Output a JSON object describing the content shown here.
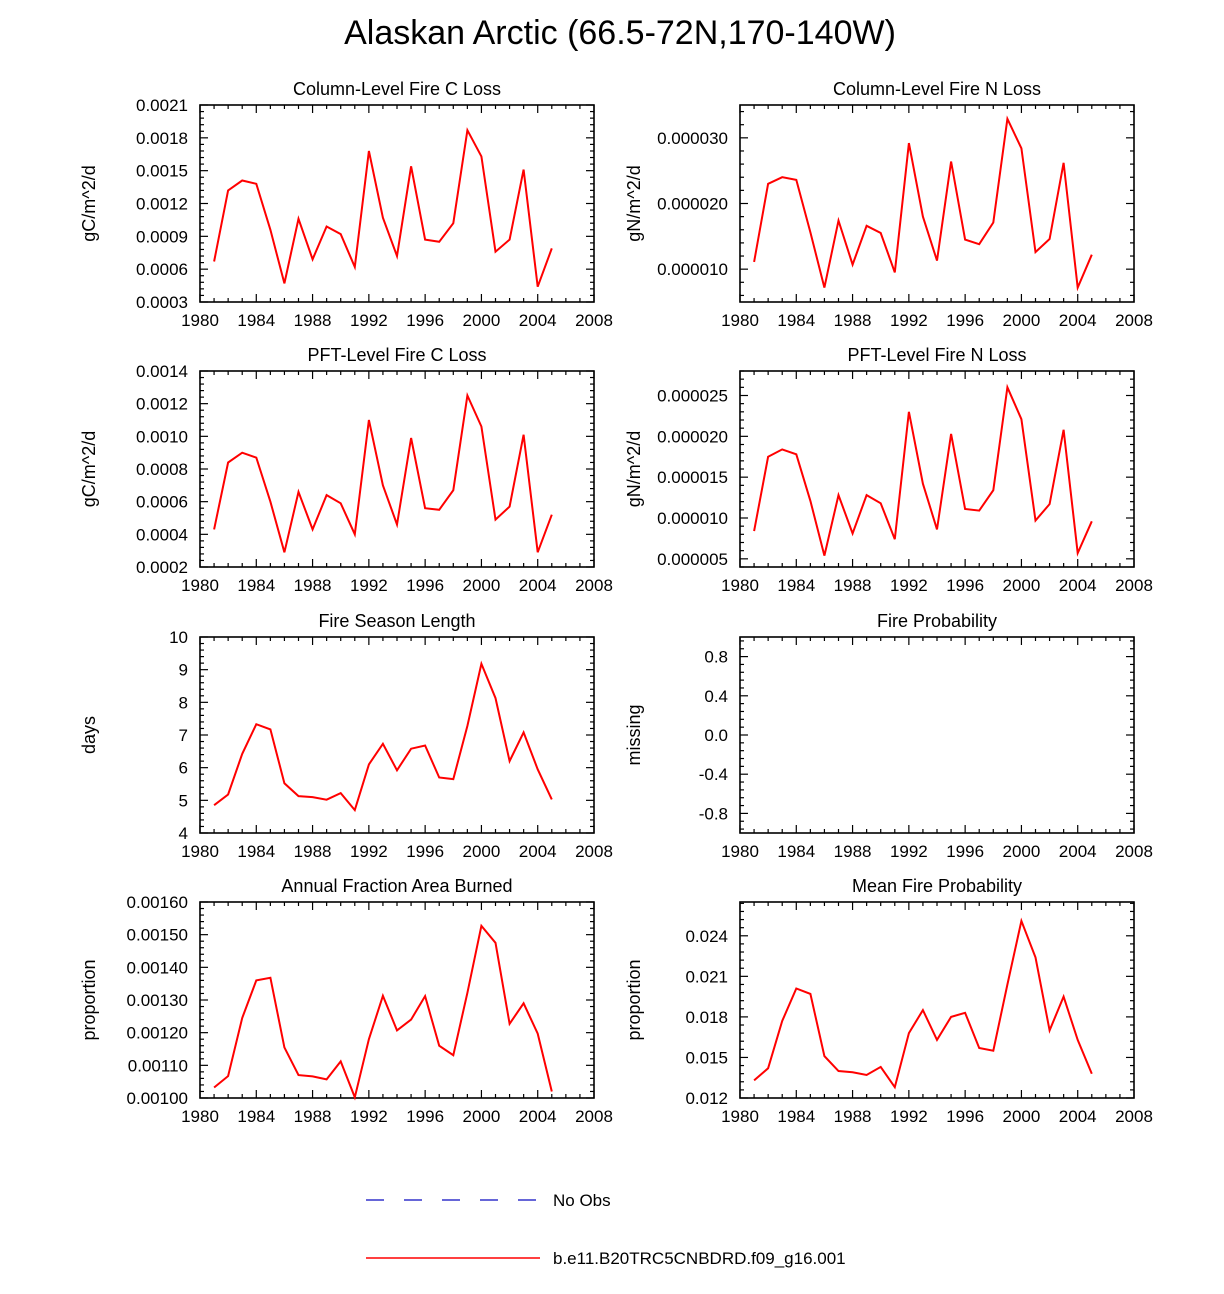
{
  "title": "Alaskan Arctic (66.5-72N,170-140W)",
  "colors": {
    "model": "#ff0000",
    "obs": "#3333cc",
    "axis": "#000000"
  },
  "legend": {
    "obs_label": "No Obs",
    "model_label": "b.e11.B20TRC5CNBDRD.f09_g16.001"
  },
  "chart_data": [
    {
      "id": "col-c",
      "type": "line",
      "title": "Column-Level Fire C Loss",
      "xlabel": "",
      "ylabel": "gC/m^2/d",
      "xlim": [
        1980,
        2008
      ],
      "ylim": [
        0.0003,
        0.0021
      ],
      "xticks": [
        1980,
        1984,
        1988,
        1992,
        1996,
        2000,
        2004,
        2008
      ],
      "yticks": [
        "0.0003",
        "0.0006",
        "0.0009",
        "0.0012",
        "0.0015",
        "0.0018",
        "0.0021"
      ],
      "x": [
        1981,
        1982,
        1983,
        1984,
        1985,
        1986,
        1987,
        1988,
        1989,
        1990,
        1991,
        1992,
        1993,
        1994,
        1995,
        1996,
        1997,
        1998,
        1999,
        2000,
        2001,
        2002,
        2003,
        2004,
        2005
      ],
      "series": [
        {
          "name": "b.e11.B20TRC5CNBDRD.f09_g16.001",
          "values": [
            0.00067,
            0.00132,
            0.00141,
            0.00138,
            0.00096,
            0.00047,
            0.00106,
            0.00069,
            0.00099,
            0.00092,
            0.00062,
            0.00168,
            0.00107,
            0.00072,
            0.00154,
            0.00087,
            0.00085,
            0.00102,
            0.00187,
            0.00163,
            0.00076,
            0.00087,
            0.00151,
            0.00044,
            0.00079
          ]
        }
      ]
    },
    {
      "id": "col-n",
      "type": "line",
      "title": "Column-Level Fire N Loss",
      "xlabel": "",
      "ylabel": "gN/m^2/d",
      "xlim": [
        1980,
        2008
      ],
      "ylim": [
        5e-06,
        3.5e-05
      ],
      "xticks": [
        1980,
        1984,
        1988,
        1992,
        1996,
        2000,
        2004,
        2008
      ],
      "yticks": [
        "0.000010",
        "0.000020",
        "0.000030"
      ],
      "x": [
        1981,
        1982,
        1983,
        1984,
        1985,
        1986,
        1987,
        1988,
        1989,
        1990,
        1991,
        1992,
        1993,
        1994,
        1995,
        1996,
        1997,
        1998,
        1999,
        2000,
        2001,
        2002,
        2003,
        2004,
        2005
      ],
      "series": [
        {
          "name": "b.e11.B20TRC5CNBDRD.f09_g16.001",
          "values": [
            1.11e-05,
            2.3e-05,
            2.4e-05,
            2.36e-05,
            1.56e-05,
            7.2e-06,
            1.74e-05,
            1.07e-05,
            1.66e-05,
            1.55e-05,
            9.5e-06,
            2.92e-05,
            1.8e-05,
            1.13e-05,
            2.64e-05,
            1.45e-05,
            1.38e-05,
            1.71e-05,
            3.29e-05,
            2.84e-05,
            1.26e-05,
            1.46e-05,
            2.62e-05,
            7.2e-06,
            1.22e-05
          ]
        }
      ]
    },
    {
      "id": "pft-c",
      "type": "line",
      "title": "PFT-Level Fire C Loss",
      "xlabel": "",
      "ylabel": "gC/m^2/d",
      "xlim": [
        1980,
        2008
      ],
      "ylim": [
        0.0002,
        0.0014
      ],
      "xticks": [
        1980,
        1984,
        1988,
        1992,
        1996,
        2000,
        2004,
        2008
      ],
      "yticks": [
        "0.0002",
        "0.0004",
        "0.0006",
        "0.0008",
        "0.0010",
        "0.0012",
        "0.0014"
      ],
      "x": [
        1981,
        1982,
        1983,
        1984,
        1985,
        1986,
        1987,
        1988,
        1989,
        1990,
        1991,
        1992,
        1993,
        1994,
        1995,
        1996,
        1997,
        1998,
        1999,
        2000,
        2001,
        2002,
        2003,
        2004,
        2005
      ],
      "series": [
        {
          "name": "b.e11.B20TRC5CNBDRD.f09_g16.001",
          "values": [
            0.00043,
            0.00084,
            0.0009,
            0.00087,
            0.0006,
            0.00029,
            0.00066,
            0.00043,
            0.00064,
            0.00059,
            0.0004,
            0.0011,
            0.0007,
            0.00046,
            0.00099,
            0.00056,
            0.00055,
            0.00067,
            0.00125,
            0.00106,
            0.00049,
            0.00057,
            0.00101,
            0.00029,
            0.00052
          ]
        }
      ]
    },
    {
      "id": "pft-n",
      "type": "line",
      "title": "PFT-Level Fire N Loss",
      "xlabel": "",
      "ylabel": "gN/m^2/d",
      "xlim": [
        1980,
        2008
      ],
      "ylim": [
        4e-06,
        2.8e-05
      ],
      "xticks": [
        1980,
        1984,
        1988,
        1992,
        1996,
        2000,
        2004,
        2008
      ],
      "yticks": [
        "0.000005",
        "0.000010",
        "0.000015",
        "0.000020",
        "0.000025"
      ],
      "x": [
        1981,
        1982,
        1983,
        1984,
        1985,
        1986,
        1987,
        1988,
        1989,
        1990,
        1991,
        1992,
        1993,
        1994,
        1995,
        1996,
        1997,
        1998,
        1999,
        2000,
        2001,
        2002,
        2003,
        2004,
        2005
      ],
      "series": [
        {
          "name": "b.e11.B20TRC5CNBDRD.f09_g16.001",
          "values": [
            8.4e-06,
            1.75e-05,
            1.84e-05,
            1.78e-05,
            1.21e-05,
            5.4e-06,
            1.28e-05,
            8.1e-06,
            1.28e-05,
            1.18e-05,
            7.4e-06,
            2.3e-05,
            1.42e-05,
            8.6e-06,
            2.03e-05,
            1.11e-05,
            1.09e-05,
            1.34e-05,
            2.6e-05,
            2.21e-05,
            9.7e-06,
            1.17e-05,
            2.08e-05,
            5.7e-06,
            9.6e-06
          ]
        }
      ]
    },
    {
      "id": "season",
      "type": "line",
      "title": "Fire Season Length",
      "xlabel": "",
      "ylabel": "days",
      "xlim": [
        1980,
        2008
      ],
      "ylim": [
        4,
        10
      ],
      "xticks": [
        1980,
        1984,
        1988,
        1992,
        1996,
        2000,
        2004,
        2008
      ],
      "yticks": [
        "4",
        "5",
        "6",
        "7",
        "8",
        "9",
        "10"
      ],
      "x": [
        1981,
        1982,
        1983,
        1984,
        1985,
        1986,
        1987,
        1988,
        1989,
        1990,
        1991,
        1992,
        1993,
        1994,
        1995,
        1996,
        1997,
        1998,
        1999,
        2000,
        2001,
        2002,
        2003,
        2004,
        2005
      ],
      "series": [
        {
          "name": "b.e11.B20TRC5CNBDRD.f09_g16.001",
          "values": [
            4.85,
            5.18,
            6.42,
            7.33,
            7.17,
            5.52,
            5.13,
            5.1,
            5.02,
            5.22,
            4.7,
            6.1,
            6.73,
            5.92,
            6.58,
            6.68,
            5.7,
            5.65,
            7.28,
            9.18,
            8.13,
            6.2,
            7.08,
            5.95,
            5.03
          ]
        }
      ]
    },
    {
      "id": "prob",
      "type": "line",
      "title": "Fire Probability",
      "xlabel": "",
      "ylabel": "missing",
      "xlim": [
        1980,
        2008
      ],
      "ylim": [
        -1,
        1
      ],
      "xticks": [
        1980,
        1984,
        1988,
        1992,
        1996,
        2000,
        2004,
        2008
      ],
      "yticks": [
        "-0.8",
        "-0.4",
        "0.0",
        "0.4",
        "0.8"
      ],
      "x": [],
      "series": []
    },
    {
      "id": "area",
      "type": "line",
      "title": "Annual Fraction Area Burned",
      "xlabel": "",
      "ylabel": "proportion",
      "xlim": [
        1980,
        2008
      ],
      "ylim": [
        0.001,
        0.0016
      ],
      "xticks": [
        1980,
        1984,
        1988,
        1992,
        1996,
        2000,
        2004,
        2008
      ],
      "yticks": [
        "0.00100",
        "0.00110",
        "0.00120",
        "0.00130",
        "0.00140",
        "0.00150",
        "0.00160"
      ],
      "x": [
        1981,
        1982,
        1983,
        1984,
        1985,
        1986,
        1987,
        1988,
        1989,
        1990,
        1991,
        1992,
        1993,
        1994,
        1995,
        1996,
        1997,
        1998,
        1999,
        2000,
        2001,
        2002,
        2003,
        2004,
        2005
      ],
      "series": [
        {
          "name": "b.e11.B20TRC5CNBDRD.f09_g16.001",
          "values": [
            0.001032,
            0.001067,
            0.001245,
            0.00136,
            0.001368,
            0.001155,
            0.00107,
            0.001066,
            0.001057,
            0.001112,
            0.001002,
            0.00118,
            0.001313,
            0.001207,
            0.00124,
            0.001312,
            0.00116,
            0.001131,
            0.001322,
            0.001527,
            0.001475,
            0.001227,
            0.00129,
            0.001197,
            0.00102
          ]
        }
      ]
    },
    {
      "id": "meanprob",
      "type": "line",
      "title": "Mean Fire Probability",
      "xlabel": "",
      "ylabel": "proportion",
      "xlim": [
        1980,
        2008
      ],
      "ylim": [
        0.012,
        0.0265
      ],
      "xticks": [
        1980,
        1984,
        1988,
        1992,
        1996,
        2000,
        2004,
        2008
      ],
      "yticks": [
        "0.012",
        "0.015",
        "0.018",
        "0.021",
        "0.024"
      ],
      "x": [
        1981,
        1982,
        1983,
        1984,
        1985,
        1986,
        1987,
        1988,
        1989,
        1990,
        1991,
        1992,
        1993,
        1994,
        1995,
        1996,
        1997,
        1998,
        1999,
        2000,
        2001,
        2002,
        2003,
        2004,
        2005
      ],
      "series": [
        {
          "name": "b.e11.B20TRC5CNBDRD.f09_g16.001",
          "values": [
            0.0133,
            0.0142,
            0.0177,
            0.0201,
            0.0197,
            0.0151,
            0.014,
            0.0139,
            0.0137,
            0.0143,
            0.0128,
            0.0168,
            0.0185,
            0.0163,
            0.018,
            0.0183,
            0.0157,
            0.0155,
            0.0204,
            0.0251,
            0.0224,
            0.017,
            0.0195,
            0.0163,
            0.0138
          ]
        }
      ]
    }
  ]
}
